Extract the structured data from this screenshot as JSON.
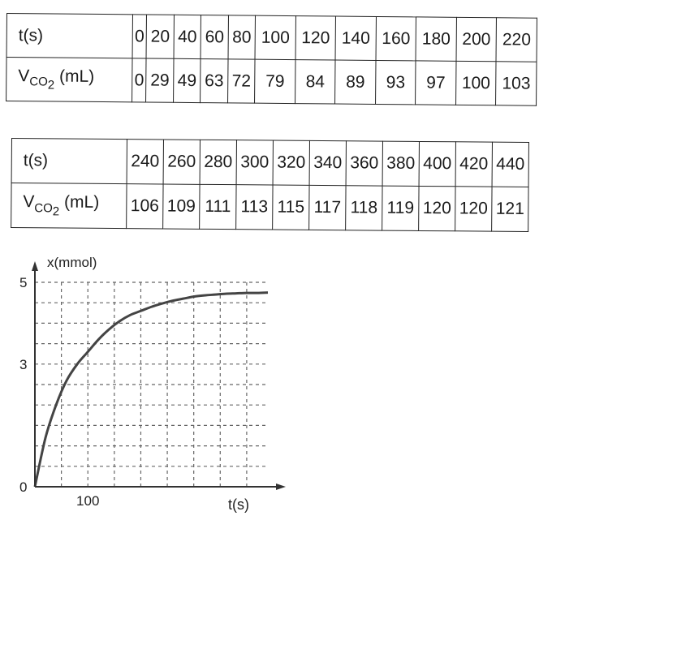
{
  "tables": [
    {
      "row_labels": {
        "t": "t(s)",
        "v_main": "V",
        "v_sub": "CO",
        "v_sub2": "2",
        "v_unit": " (mL)"
      },
      "t": [
        "0",
        "20",
        "40",
        "60",
        "80",
        "100",
        "120",
        "140",
        "160",
        "180",
        "200",
        "220"
      ],
      "v": [
        "0",
        "29",
        "49",
        "63",
        "72",
        "79",
        "84",
        "89",
        "93",
        "97",
        "100",
        "103"
      ]
    },
    {
      "row_labels": {
        "t": "t(s)",
        "v_main": "V",
        "v_sub": "CO",
        "v_sub2": "2",
        "v_unit": " (mL)"
      },
      "t": [
        "240",
        "260",
        "280",
        "300",
        "320",
        "340",
        "360",
        "380",
        "400",
        "420",
        "440"
      ],
      "v": [
        "106",
        "109",
        "111",
        "113",
        "115",
        "117",
        "118",
        "119",
        "120",
        "120",
        "121"
      ]
    }
  ],
  "chart_data": {
    "type": "line",
    "ylabel": "x(mmol)",
    "xlabel": "t(s)",
    "x_tick_labels": [
      {
        "value": 100,
        "label": "100"
      }
    ],
    "y_tick_labels": [
      {
        "value": 0,
        "label": "0"
      },
      {
        "value": 3,
        "label": "3"
      },
      {
        "value": 5,
        "label": "5"
      }
    ],
    "xlim": [
      0,
      440
    ],
    "ylim": [
      0,
      5
    ],
    "grid": true,
    "grid_x_step": 50,
    "grid_y_step": 0.5,
    "series": [
      {
        "x": [
          0,
          20,
          40,
          60,
          80,
          100,
          120,
          140,
          160,
          180,
          200,
          220,
          240,
          260,
          280,
          300,
          320,
          340,
          360,
          380,
          400,
          420,
          440
        ],
        "y": [
          0,
          1.2,
          2.0,
          2.6,
          3.0,
          3.3,
          3.6,
          3.85,
          4.05,
          4.2,
          4.3,
          4.4,
          4.48,
          4.55,
          4.6,
          4.65,
          4.68,
          4.7,
          4.72,
          4.73,
          4.74,
          4.74,
          4.75
        ]
      }
    ],
    "colors": {
      "curve": "#444444",
      "grid": "#666666",
      "axis": "#333333"
    }
  }
}
